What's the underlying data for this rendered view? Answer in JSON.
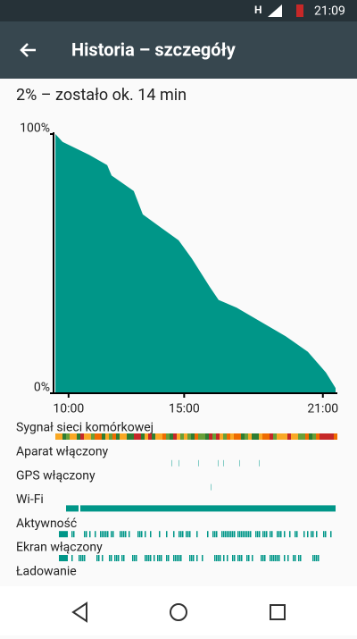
{
  "status_bar": {
    "network": "H",
    "time": "21:09"
  },
  "toolbar": {
    "title": "Historia – szczegóły"
  },
  "summary": "2% – zostało ok. 14 min",
  "chart_data": {
    "type": "area",
    "color": "#009688",
    "x": [
      9.43,
      9.74,
      10.89,
      11.67,
      11.86,
      12.82,
      13.21,
      13.98,
      14.76,
      15.33,
      16.11,
      16.49,
      17.27,
      18.23,
      19.39,
      20.35,
      21.13,
      21.55
    ],
    "values": [
      100,
      97,
      92,
      88,
      84,
      78,
      69,
      64,
      59,
      52,
      41,
      36,
      33,
      28,
      22,
      16,
      8,
      2
    ],
    "xlim": [
      9.35,
      21.55
    ],
    "ylim": [
      0,
      100
    ],
    "yticks": [
      {
        "value": 0,
        "label": "0%"
      },
      {
        "value": 100,
        "label": "100%"
      }
    ],
    "xticks": [
      {
        "value": 10,
        "label": "10:00"
      },
      {
        "value": 15,
        "label": "15:00"
      },
      {
        "value": 21,
        "label": "21:00"
      }
    ]
  },
  "tracks": [
    "Sygnał sieci komórkowej",
    "Aparat włączony",
    "GPS włączony",
    "Wi-Fi",
    "Aktywność",
    "Ekran włączony",
    "Ładowanie"
  ]
}
